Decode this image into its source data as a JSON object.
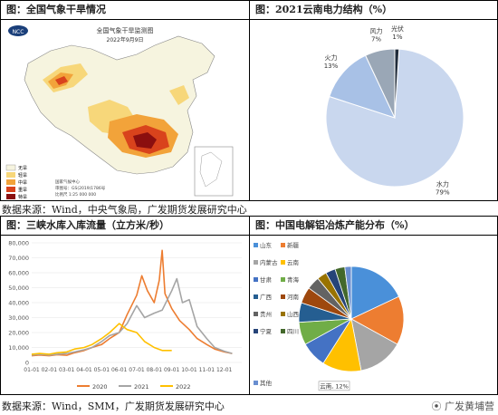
{
  "panels": {
    "drought": {
      "title": "图：全国气象干旱情况",
      "map_title": "全国气象干旱监测图",
      "map_date": "2022年9月9日",
      "logo_text": "NCC",
      "legend": [
        "无旱",
        "轻旱",
        "中旱",
        "重旱",
        "特旱"
      ],
      "footer": [
        "国家气候中心",
        "审图号：GS(2019)1786号",
        "比例尺 1:25 000 000"
      ],
      "colors": [
        "#f6f4df",
        "#f7d77a",
        "#f2a33a",
        "#d9431c",
        "#8b0f0f"
      ]
    },
    "power": {
      "title": "图：2021云南电力结构（%）",
      "chart_data": {
        "type": "pie",
        "title": "",
        "slices": [
          {
            "label": "水力",
            "value": 79,
            "display": "79%",
            "color": "#c9d7ee"
          },
          {
            "label": "火力",
            "value": 13,
            "display": "13%",
            "color": "#a8c1e6"
          },
          {
            "label": "风力",
            "value": 7,
            "display": "7%",
            "color": "#9aa7b6"
          },
          {
            "label": "光伏",
            "value": 1,
            "display": "1%",
            "color": "#1f2b3a"
          }
        ]
      }
    },
    "flow": {
      "title": "图：三峡水库入库流量（立方米/秒）",
      "chart_data": {
        "type": "line",
        "title": "",
        "xlabel": "",
        "ylabel": "",
        "ylim": [
          0,
          80000
        ],
        "yticks": [
          "0",
          "10,000",
          "20,000",
          "30,000",
          "40,000",
          "50,000",
          "60,000",
          "70,000",
          "80,000"
        ],
        "xticks": [
          "01-01",
          "02-01",
          "03-01",
          "04-01",
          "05-01",
          "06-01",
          "07-01",
          "08-01",
          "09-01",
          "10-01",
          "11-01",
          "12-01"
        ],
        "series": [
          {
            "name": "2020",
            "color": "#ed7d31",
            "x": [
              "01-01",
              "01-15",
              "02-01",
              "02-15",
              "03-01",
              "03-15",
              "04-01",
              "04-15",
              "05-01",
              "05-15",
              "06-01",
              "06-15",
              "07-01",
              "07-10",
              "07-20",
              "08-01",
              "08-10",
              "08-15",
              "08-20",
              "09-01",
              "09-15",
              "10-01",
              "10-15",
              "11-01",
              "11-15",
              "12-01",
              "12-15"
            ],
            "y": [
              4500,
              5000,
              4500,
              5200,
              4800,
              6500,
              8000,
              10000,
              12000,
              16000,
              20000,
              32000,
              45000,
              58000,
              48000,
              40000,
              55000,
              75000,
              46000,
              36000,
              28000,
              22000,
              16000,
              12000,
              9000,
              7000,
              6000
            ]
          },
          {
            "name": "2021",
            "color": "#a5a5a5",
            "x": [
              "01-01",
              "01-15",
              "02-01",
              "02-15",
              "03-01",
              "03-15",
              "04-01",
              "04-15",
              "05-01",
              "05-15",
              "06-01",
              "06-15",
              "07-01",
              "07-15",
              "08-01",
              "08-15",
              "09-01",
              "09-10",
              "09-20",
              "10-01",
              "10-15",
              "11-01",
              "11-15",
              "12-01",
              "12-15"
            ],
            "y": [
              5000,
              5500,
              5000,
              5500,
              6000,
              7000,
              8500,
              10000,
              14000,
              18000,
              20000,
              26000,
              38000,
              30000,
              33000,
              35000,
              48000,
              56000,
              40000,
              42000,
              24000,
              16000,
              10000,
              7500,
              6000
            ]
          },
          {
            "name": "2022",
            "color": "#ffc000",
            "x": [
              "01-01",
              "01-15",
              "02-01",
              "02-15",
              "03-01",
              "03-15",
              "04-01",
              "04-15",
              "05-01",
              "05-15",
              "06-01",
              "06-15",
              "07-01",
              "07-15",
              "08-01",
              "08-15",
              "09-01"
            ],
            "y": [
              5500,
              6000,
              5500,
              6500,
              7000,
              9000,
              10000,
              12000,
              16000,
              20000,
              26000,
              22000,
              20000,
              14000,
              10000,
              8000,
              8000
            ]
          }
        ]
      }
    },
    "aluminum": {
      "title": "图：中国电解铝冶炼产能分布（%）",
      "chart_data": {
        "type": "pie",
        "title": "",
        "slices": [
          {
            "label": "山东",
            "value": 18,
            "color": "#4a90d9"
          },
          {
            "label": "新疆",
            "value": 15,
            "color": "#ed7d31"
          },
          {
            "label": "内蒙古",
            "value": 14,
            "color": "#a5a5a5"
          },
          {
            "label": "云南",
            "value": 12,
            "color": "#ffc000",
            "display": "云南, 12%"
          },
          {
            "label": "甘肃",
            "value": 8,
            "color": "#4472c4"
          },
          {
            "label": "青海",
            "value": 7,
            "color": "#70ad47"
          },
          {
            "label": "广西",
            "value": 6,
            "color": "#255e91"
          },
          {
            "label": "河南",
            "value": 5,
            "color": "#9e480e"
          },
          {
            "label": "贵州",
            "value": 4,
            "color": "#636363"
          },
          {
            "label": "山西",
            "value": 3,
            "color": "#997300"
          },
          {
            "label": "宁夏",
            "value": 3,
            "color": "#264478"
          },
          {
            "label": "四川",
            "value": 3,
            "color": "#43682b"
          },
          {
            "label": "其他",
            "value": 2,
            "color": "#698ed0"
          }
        ]
      }
    }
  },
  "sources": {
    "top": "数据来源：Wind，中央气象局，广发期货发展研究中心",
    "bottom": "数据来源：Wind，SMM，广发期货发展研究中心"
  },
  "watermark": "广发黄埔营"
}
